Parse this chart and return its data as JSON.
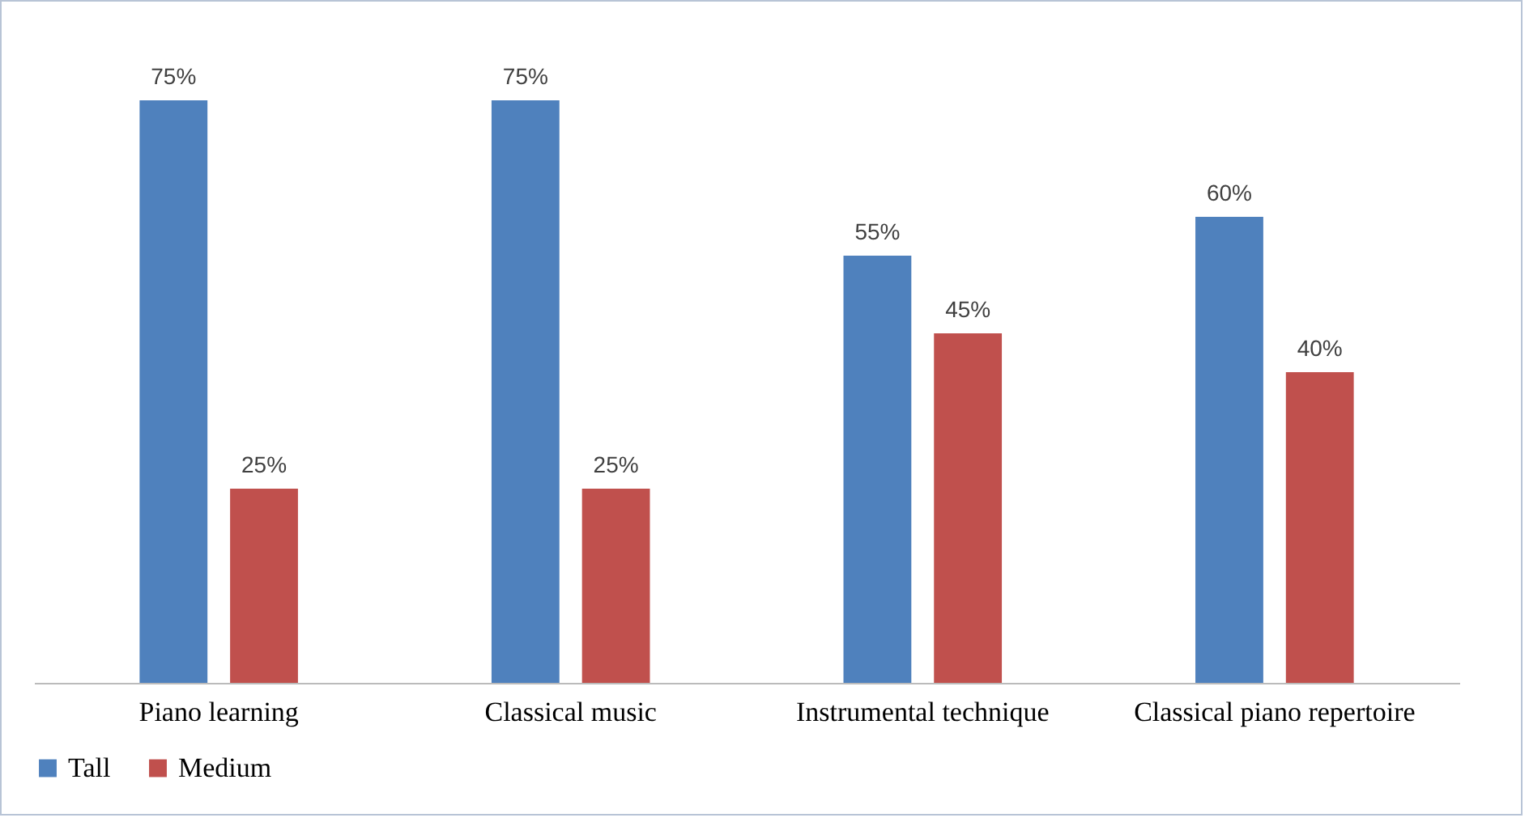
{
  "chart_data": {
    "type": "bar",
    "categories": [
      "Piano learning",
      "Classical music",
      "Instrumental technique",
      "Classical piano repertoire"
    ],
    "series": [
      {
        "name": "Tall",
        "color": "#4f81bd",
        "values": [
          75,
          75,
          55,
          60
        ],
        "value_labels": [
          "75%",
          "75%",
          "55%",
          "60%"
        ]
      },
      {
        "name": "Medium",
        "color": "#c0504d",
        "values": [
          25,
          25,
          45,
          40
        ],
        "value_labels": [
          "25%",
          "25%",
          "45%",
          "40%"
        ]
      }
    ],
    "legend": "bottom",
    "grid": false
  }
}
